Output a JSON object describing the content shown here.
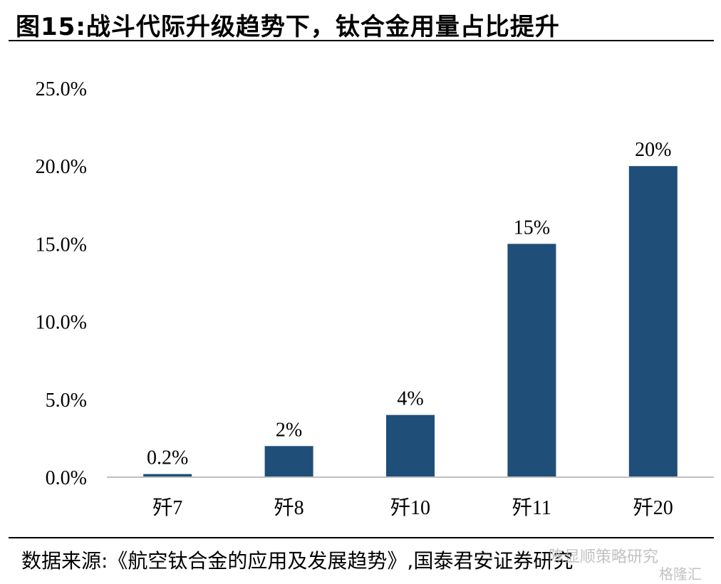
{
  "header": {
    "title": "图15:战斗代际升级趋势下，钛合金用量占比提升"
  },
  "footer": {
    "source": "数据来源:《航空钛合金的应用及发展趋势》,国泰君安证券研究",
    "watermark": "陈显顺策略研究",
    "watermark2": "格隆汇"
  },
  "colors": {
    "bar": "#1f4e79",
    "axis": "#bfbfbf"
  },
  "chart_data": {
    "type": "bar",
    "title": "图15:战斗代际升级趋势下，钛合金用量占比提升",
    "xlabel": "",
    "ylabel": "",
    "categories": [
      "歼7",
      "歼8",
      "歼10",
      "歼11",
      "歼20"
    ],
    "values": [
      0.2,
      2,
      4,
      15,
      20
    ],
    "data_labels": [
      "0.2%",
      "2%",
      "4%",
      "15%",
      "20%"
    ],
    "y_ticks": [
      0,
      5,
      10,
      15,
      20,
      25
    ],
    "y_tick_labels": [
      "0.0%",
      "5.0%",
      "10.0%",
      "15.0%",
      "20.0%",
      "25.0%"
    ],
    "ylim": [
      0,
      25
    ],
    "grid": false,
    "legend": "none"
  }
}
